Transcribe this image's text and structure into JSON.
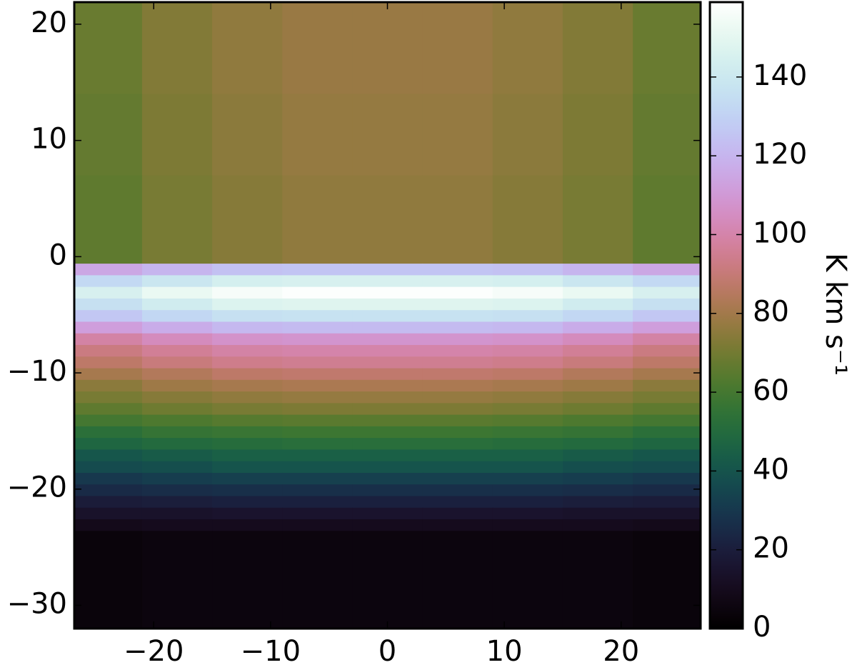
{
  "chart_data": {
    "type": "heatmap",
    "colormap": "cubehelix",
    "x_edges": [
      -26.8,
      -21,
      -15,
      -9,
      -3,
      3,
      9,
      15,
      21,
      26.8
    ],
    "y_edges": [
      21.9,
      14,
      7,
      -0.6,
      -1.6,
      -2.6,
      -3.6,
      -4.6,
      -5.6,
      -6.6,
      -7.6,
      -8.6,
      -9.6,
      -10.6,
      -11.6,
      -12.6,
      -13.6,
      -14.6,
      -15.6,
      -16.6,
      -17.6,
      -18.6,
      -19.6,
      -20.6,
      -21.6,
      -22.6,
      -23.6,
      -32
    ],
    "values": [
      [
        68,
        73,
        76,
        78,
        78,
        78,
        76,
        73,
        68
      ],
      [
        67,
        72,
        75,
        77,
        77,
        77,
        75,
        72,
        67
      ],
      [
        66,
        71,
        74,
        76,
        76,
        76,
        74,
        71,
        66
      ],
      [
        115,
        120,
        124,
        125,
        125,
        125,
        124,
        120,
        115
      ],
      [
        133,
        139,
        144,
        145,
        145,
        145,
        144,
        139,
        133
      ],
      [
        145,
        152,
        156,
        158,
        158,
        158,
        156,
        152,
        145
      ],
      [
        136,
        142,
        147,
        148,
        148,
        148,
        147,
        142,
        136
      ],
      [
        126,
        132,
        136,
        137,
        137,
        137,
        136,
        132,
        126
      ],
      [
        112,
        117,
        121,
        122,
        122,
        122,
        121,
        117,
        112
      ],
      [
        99,
        104,
        107,
        108,
        108,
        108,
        107,
        104,
        99
      ],
      [
        92,
        96,
        99,
        100,
        100,
        100,
        99,
        96,
        92
      ],
      [
        87,
        91,
        94,
        95,
        95,
        95,
        94,
        91,
        87
      ],
      [
        81,
        84,
        87,
        88,
        88,
        88,
        87,
        84,
        81
      ],
      [
        75,
        79,
        81,
        82,
        82,
        82,
        81,
        79,
        75
      ],
      [
        71,
        74,
        76,
        77,
        77,
        77,
        76,
        74,
        71
      ],
      [
        66,
        69,
        71,
        72,
        72,
        72,
        71,
        69,
        66
      ],
      [
        60,
        62,
        64,
        65,
        65,
        65,
        64,
        62,
        60
      ],
      [
        53,
        56,
        57,
        58,
        58,
        58,
        57,
        56,
        53
      ],
      [
        48,
        50,
        51,
        52,
        52,
        52,
        51,
        50,
        48
      ],
      [
        41,
        43,
        45,
        45,
        45,
        45,
        45,
        43,
        41
      ],
      [
        37,
        38,
        40,
        40,
        40,
        40,
        40,
        38,
        37
      ],
      [
        30,
        32,
        33,
        33,
        33,
        33,
        33,
        32,
        30
      ],
      [
        25,
        26,
        27,
        27,
        27,
        27,
        27,
        26,
        25
      ],
      [
        19,
        20,
        21,
        21,
        21,
        21,
        21,
        20,
        19
      ],
      [
        14,
        14,
        15,
        15,
        15,
        15,
        15,
        14,
        14
      ],
      [
        9,
        10,
        10,
        10,
        10,
        10,
        10,
        10,
        9
      ],
      [
        4,
        5,
        5,
        5,
        5,
        5,
        5,
        5,
        4
      ]
    ],
    "xlim": [
      -26.8,
      26.8
    ],
    "ylim": [
      -32,
      21.9
    ],
    "xticks": [
      {
        "value": -20,
        "label": "−20"
      },
      {
        "value": -10,
        "label": "−10"
      },
      0,
      10,
      20
    ],
    "yticks": [
      {
        "value": -30,
        "label": "−30"
      },
      {
        "value": -20,
        "label": "−20"
      },
      {
        "value": -10,
        "label": "−10"
      },
      0,
      10,
      20
    ],
    "colorbar": {
      "lim": [
        0,
        159
      ],
      "ticks": [
        0,
        20,
        40,
        60,
        80,
        100,
        120,
        140
      ],
      "label": "K km s⁻¹"
    }
  }
}
